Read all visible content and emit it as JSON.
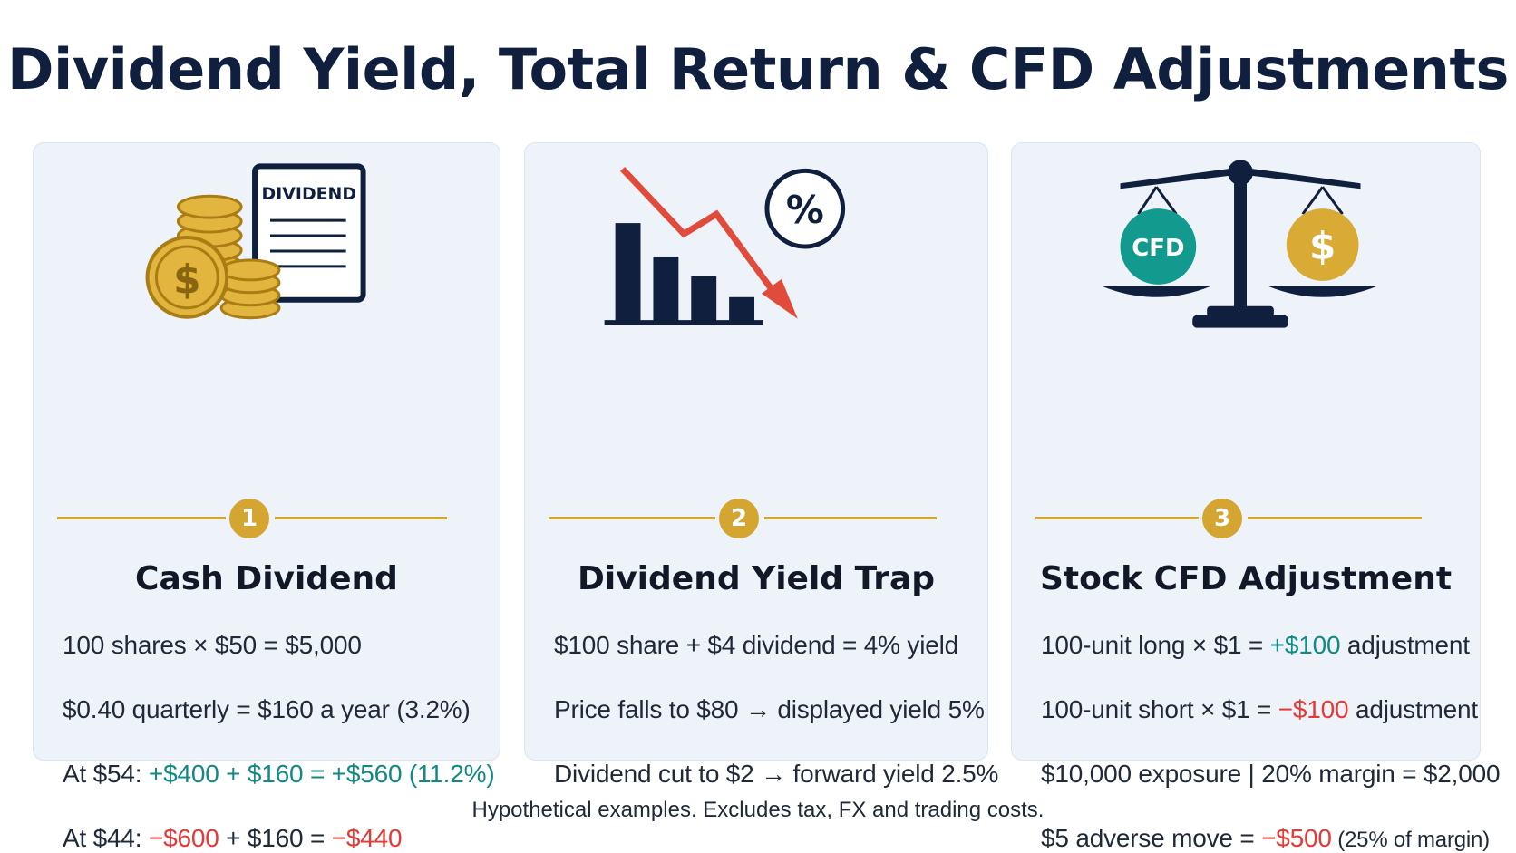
{
  "title": "Dividend Yield, Total Return & CFD Adjustments",
  "colors": {
    "navy": "#0f1f3d",
    "gold": "#d4a531",
    "teal": "#128a82",
    "red": "#e53935",
    "card_bg": "#eef3fa"
  },
  "cards": [
    {
      "step": "1",
      "title": "Cash Dividend",
      "icon": "coins-and-dividend-document-icon",
      "doc_label": "DIVIDEND",
      "coin_symbol": "$",
      "lines": [
        {
          "parts": [
            {
              "text": "100 shares × $50 = $5,000",
              "tone": "plain"
            }
          ]
        },
        {
          "parts": [
            {
              "text": "$0.40 quarterly = $160 a year (3.2%)",
              "tone": "plain"
            }
          ]
        },
        {
          "parts": [
            {
              "text": "At $54: ",
              "tone": "plain"
            },
            {
              "text": "+$400 + $160 = +$560 (11.2%)",
              "tone": "pos"
            }
          ]
        },
        {
          "parts": [
            {
              "text": "At $44: ",
              "tone": "plain"
            },
            {
              "text": "−$600",
              "tone": "neg"
            },
            {
              "text": " + $160 = ",
              "tone": "plain"
            },
            {
              "text": "−$440",
              "tone": "neg"
            }
          ]
        }
      ]
    },
    {
      "step": "2",
      "title": "Dividend Yield Trap",
      "icon": "falling-bar-chart-with-percent-icon",
      "percent_symbol": "%",
      "lines": [
        {
          "parts": [
            {
              "text": "$100 share + $4 dividend = 4% yield",
              "tone": "plain"
            }
          ]
        },
        {
          "parts": [
            {
              "text": "Price falls to $80 → displayed yield 5%",
              "tone": "plain"
            }
          ]
        },
        {
          "parts": [
            {
              "text": "Dividend cut to $2 → forward yield 2.5%",
              "tone": "plain"
            }
          ]
        }
      ]
    },
    {
      "step": "3",
      "title": "Stock CFD Adjustment",
      "icon": "balance-scale-icon",
      "cfd_label": "CFD",
      "coin_symbol": "$",
      "lines": [
        {
          "parts": [
            {
              "text": "100-unit long × $1 = ",
              "tone": "plain"
            },
            {
              "text": "+$100",
              "tone": "pos"
            },
            {
              "text": " adjustment",
              "tone": "plain"
            }
          ]
        },
        {
          "parts": [
            {
              "text": "100-unit short × $1 = ",
              "tone": "plain"
            },
            {
              "text": "−$100",
              "tone": "neg"
            },
            {
              "text": " adjustment",
              "tone": "plain"
            }
          ]
        },
        {
          "parts": [
            {
              "text": "$10,000 exposure | 20% margin = $2,000",
              "tone": "plain"
            }
          ]
        },
        {
          "parts": [
            {
              "text": "$5 adverse move = ",
              "tone": "plain"
            },
            {
              "text": "−$500",
              "tone": "neg"
            },
            {
              "text": " (25% of margin)",
              "tone": "small"
            }
          ]
        }
      ]
    }
  ],
  "footer": "Hypothetical examples. Excludes tax, FX and trading costs."
}
